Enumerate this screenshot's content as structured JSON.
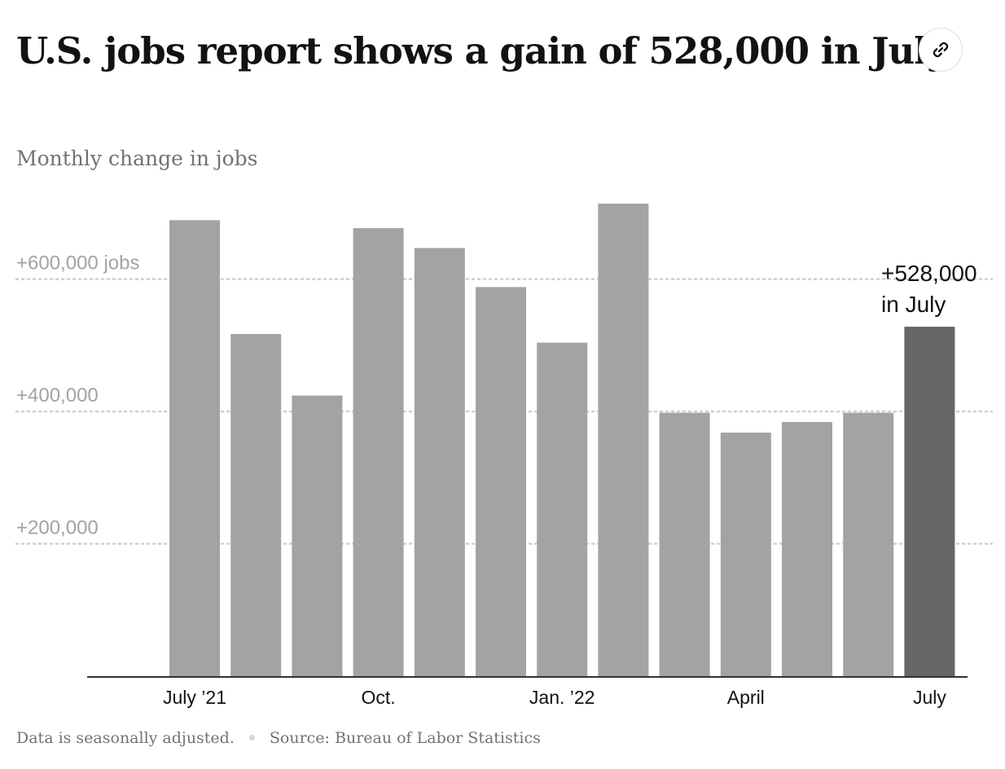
{
  "header": {
    "title": "U.S. jobs report shows a gain of 528,000 in July.",
    "link_icon": "link-icon"
  },
  "chart_data": {
    "type": "bar",
    "title": "U.S. jobs report shows a gain of 528,000 in July.",
    "subtitle": "Monthly change in jobs",
    "categories": [
      "Jul 2021",
      "Aug 2021",
      "Sep 2021",
      "Oct 2021",
      "Nov 2021",
      "Dec 2021",
      "Jan 2022",
      "Feb 2022",
      "Mar 2022",
      "Apr 2022",
      "May 2022",
      "Jun 2022",
      "Jul 2022"
    ],
    "x_tick_labels": [
      {
        "category": "Jul 2021",
        "label": "July ’21"
      },
      {
        "category": "Oct 2021",
        "label": "Oct."
      },
      {
        "category": "Jan 2022",
        "label": "Jan. ’22"
      },
      {
        "category": "Apr 2022",
        "label": "April"
      },
      {
        "category": "Jul 2022",
        "label": "July"
      }
    ],
    "values": [
      689000,
      517000,
      424000,
      677000,
      647000,
      588000,
      504000,
      714000,
      398000,
      368000,
      384000,
      398000,
      528000
    ],
    "highlight_index": 12,
    "y_ticks": [
      {
        "value": 200000,
        "label": "+200,000"
      },
      {
        "value": 400000,
        "label": "+400,000"
      },
      {
        "value": 600000,
        "label": "+600,000 jobs"
      }
    ],
    "ylim": [
      0,
      714000
    ],
    "grid": true,
    "annotation": {
      "index": 12,
      "lines": [
        "+528,000",
        "in July"
      ]
    },
    "colors": {
      "bar": "#a3a3a3",
      "highlight": "#666666",
      "grid": "#cfcfcf",
      "axis": "#333333",
      "tick_text": "#a3a3a3",
      "label_text": "#121212"
    }
  },
  "footer": {
    "note": "Data is seasonally adjusted.",
    "source": "Source: Bureau of Labor Statistics"
  }
}
